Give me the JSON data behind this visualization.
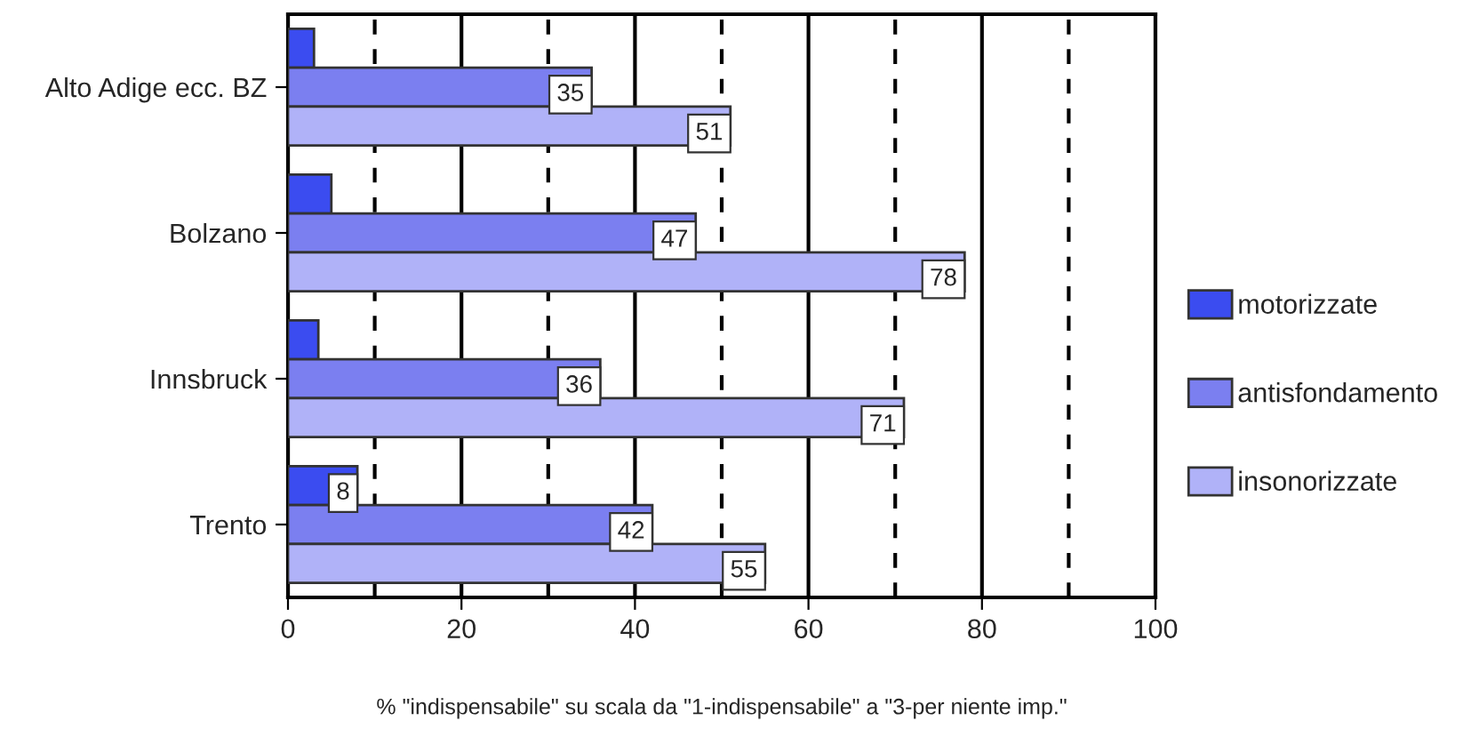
{
  "chart_data": {
    "type": "bar",
    "orientation": "horizontal",
    "xlabel": "% \"indispensabile\" su scala da \"1-indispensabile\" a \"3-per niente imp.\"",
    "categories": [
      "Alto Adige ecc. BZ",
      "Bolzano",
      "Innsbruck",
      "Trento"
    ],
    "series": [
      {
        "name": "motorizzate",
        "color": "#3b4cf0",
        "values": [
          3,
          5,
          3.5,
          8
        ],
        "value_labels": [
          null,
          null,
          null,
          "8"
        ]
      },
      {
        "name": "antisfondamento",
        "color": "#7b7ff0",
        "values": [
          35,
          47,
          36,
          42
        ],
        "value_labels": [
          "35",
          "47",
          "36",
          "42"
        ]
      },
      {
        "name": "insonorizzate",
        "color": "#b0b2f8",
        "values": [
          51,
          78,
          71,
          55
        ],
        "value_labels": [
          "51",
          "78",
          "71",
          "55"
        ]
      }
    ],
    "xlim": [
      0,
      100
    ],
    "xticks": [
      0,
      20,
      40,
      60,
      80,
      100
    ],
    "grid": "x",
    "ref_lines": [
      {
        "axis": "x",
        "value": 10,
        "line_style": "dashed",
        "color": "#000000"
      },
      {
        "axis": "x",
        "value": 30,
        "line_style": "dashed",
        "color": "#000000"
      },
      {
        "axis": "x",
        "value": 50,
        "line_style": "dashed",
        "color": "#000000"
      },
      {
        "axis": "x",
        "value": 70,
        "line_style": "dashed",
        "color": "#000000"
      },
      {
        "axis": "x",
        "value": 90,
        "line_style": "dashed",
        "color": "#000000"
      }
    ],
    "legend": "right"
  }
}
